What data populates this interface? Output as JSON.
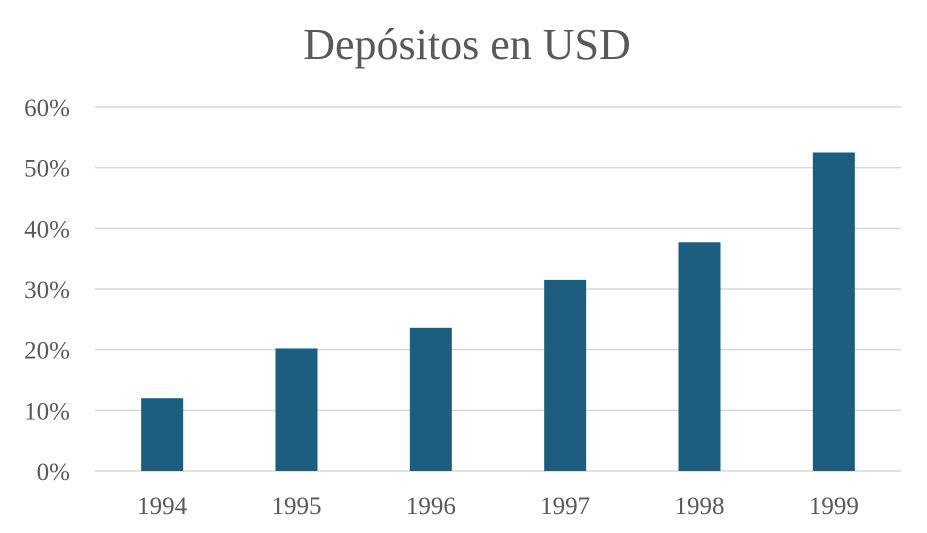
{
  "chart_data": {
    "type": "bar",
    "title": "Depósitos en USD",
    "xlabel": "",
    "ylabel": "",
    "categories": [
      "1994",
      "1995",
      "1996",
      "1997",
      "1998",
      "1999"
    ],
    "values": [
      12,
      20.2,
      23.6,
      31.5,
      37.7,
      52.5
    ],
    "unit": "%",
    "ylim": [
      0,
      60
    ],
    "yticks": [
      0,
      10,
      20,
      30,
      40,
      50,
      60
    ],
    "ytick_labels": [
      "0%",
      "10%",
      "20%",
      "30%",
      "40%",
      "50%",
      "60%"
    ],
    "grid": true,
    "legend": "none",
    "bar_color": "#1b5e80"
  }
}
